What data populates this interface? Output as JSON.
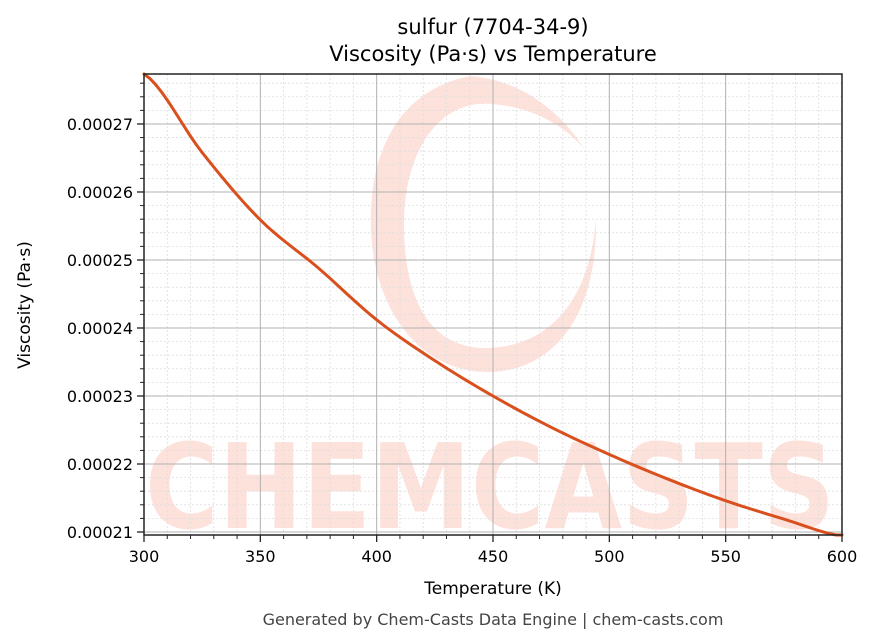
{
  "chart_data": {
    "type": "line",
    "title": "sulfur (7704-34-9)",
    "subtitle": "Viscosity (Pa·s) vs Temperature",
    "xlabel": "Temperature (K)",
    "ylabel": "Viscosity (Pa·s)",
    "xlim": [
      300,
      600
    ],
    "ylim": [
      0.00020956,
      0.00027735
    ],
    "x_ticks": [
      300,
      350,
      400,
      450,
      500,
      550,
      600
    ],
    "x_tick_labels": [
      "300",
      "350",
      "400",
      "450",
      "500",
      "550",
      "600"
    ],
    "y_ticks": [
      0.00021,
      0.00022,
      0.00023,
      0.00024,
      0.00025,
      0.00026,
      0.00027
    ],
    "y_tick_labels": [
      "0.00021",
      "0.00022",
      "0.00023",
      "0.00024",
      "0.00025",
      "0.00026",
      "0.00027"
    ],
    "grid": true,
    "minor_grid": true,
    "legend": null,
    "series": [
      {
        "name": "Viscosity",
        "color": "#d9501e",
        "x": [
          300,
          325,
          350,
          375,
          400,
          425,
          450,
          475,
          500,
          525,
          550,
          575,
          600
        ],
        "values": [
          0.0002774,
          0.0002658,
          0.0002559,
          0.0002488,
          0.0002412,
          0.0002352,
          0.00023,
          0.0002254,
          0.0002214,
          0.0002178,
          0.0002146,
          0.0002119,
          0.0002094
        ]
      }
    ],
    "watermark": "CHEMCASTS"
  },
  "footer": "Generated by Chem-Casts Data Engine | chem-casts.com",
  "colors": {
    "line": "#d9501e",
    "watermark": "#fde2dc",
    "grid_major": "#b0b0b0",
    "grid_minor": "#dddddd",
    "axis": "#222222"
  }
}
